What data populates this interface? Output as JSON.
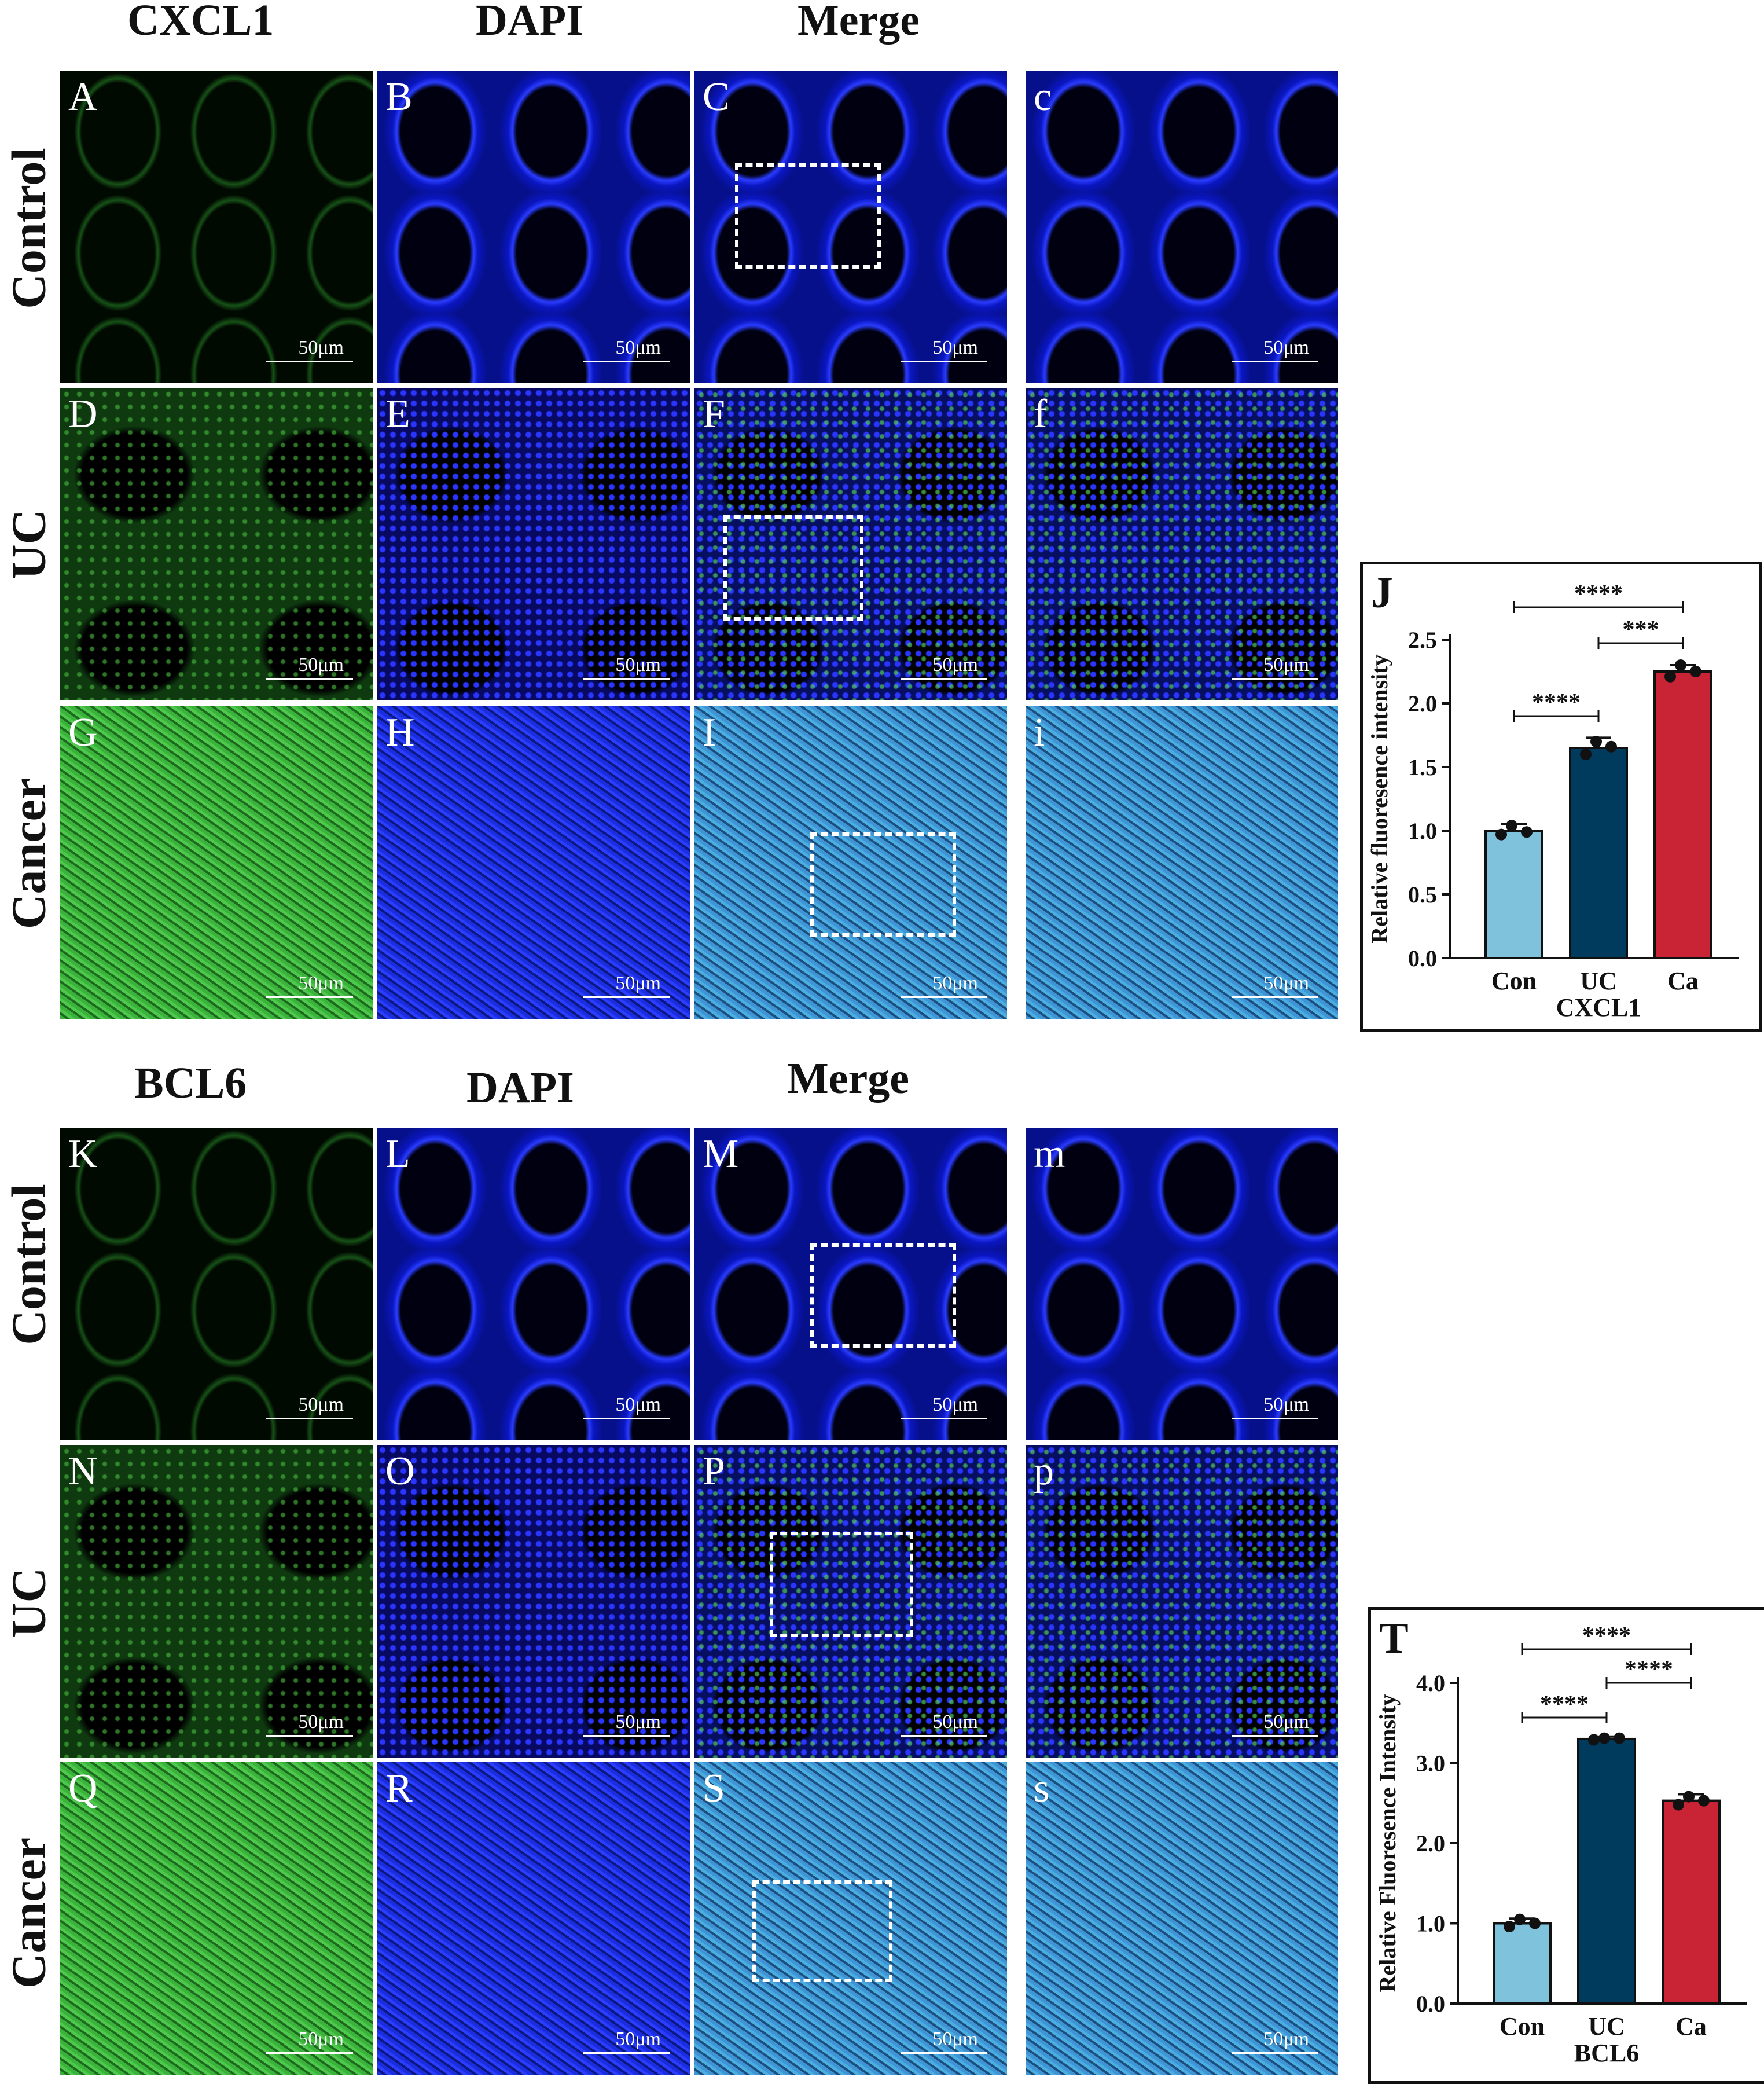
{
  "top_headers": {
    "col1": "CXCL1",
    "col2": "DAPI",
    "col3": "Merge"
  },
  "bottom_headers": {
    "col1": "BCL6",
    "col2": "DAPI",
    "col3": "Merge"
  },
  "row_labels": [
    "Control",
    "UC",
    "Cancer",
    "Control",
    "UC",
    "Cancer"
  ],
  "panel_letters": [
    "A",
    "B",
    "C",
    "c",
    "D",
    "E",
    "F",
    "f",
    "G",
    "H",
    "I",
    "i",
    "K",
    "L",
    "M",
    "m",
    "N",
    "O",
    "P",
    "p",
    "Q",
    "R",
    "S",
    "s"
  ],
  "scale_bar_label": "50μm",
  "colors": {
    "green_channel": "#2fbf2f",
    "blue_channel": "#1a2fff",
    "con": "#7ec2dc",
    "uc": "#003a5d",
    "ca": "#c92336"
  },
  "chart_data": [
    {
      "panel": "J",
      "type": "bar",
      "categories": [
        "Con",
        "UC",
        "Ca"
      ],
      "values": [
        1.0,
        1.65,
        2.25
      ],
      "error": [
        0.05,
        0.08,
        0.05
      ],
      "points": [
        [
          1.04,
          0.97,
          0.99
        ],
        [
          1.7,
          1.6,
          1.66
        ],
        [
          2.3,
          2.21,
          2.25
        ]
      ],
      "xlabel": "CXCL1",
      "ylabel": "Relative fluoresence intensity",
      "ylim": [
        0,
        2.5
      ],
      "yticks": [
        "0.0",
        "0.5",
        "1.0",
        "1.5",
        "2.0",
        "2.5"
      ],
      "bar_colors": [
        "#7ec2dc",
        "#003a5d",
        "#c92336"
      ],
      "significance": [
        {
          "from": "Con",
          "to": "Ca",
          "label": "****"
        },
        {
          "from": "UC",
          "to": "Ca",
          "label": "***"
        },
        {
          "from": "Con",
          "to": "UC",
          "label": "****"
        }
      ]
    },
    {
      "panel": "T",
      "type": "bar",
      "categories": [
        "Con",
        "UC",
        "Ca"
      ],
      "values": [
        1.0,
        3.3,
        2.53
      ],
      "error": [
        0.06,
        0.03,
        0.08
      ],
      "points": [
        [
          1.05,
          0.96,
          1.0
        ],
        [
          3.31,
          3.29,
          3.31
        ],
        [
          2.58,
          2.48,
          2.53
        ]
      ],
      "xlabel": "BCL6",
      "ylabel": "Relative Fluoresence Intensity",
      "ylim": [
        0,
        4.0
      ],
      "yticks": [
        "0.0",
        "1.0",
        "2.0",
        "3.0",
        "4.0"
      ],
      "bar_colors": [
        "#7ec2dc",
        "#003a5d",
        "#c92336"
      ],
      "significance": [
        {
          "from": "Con",
          "to": "Ca",
          "label": "****"
        },
        {
          "from": "UC",
          "to": "Ca",
          "label": "****"
        },
        {
          "from": "Con",
          "to": "UC",
          "label": "****"
        }
      ]
    }
  ]
}
